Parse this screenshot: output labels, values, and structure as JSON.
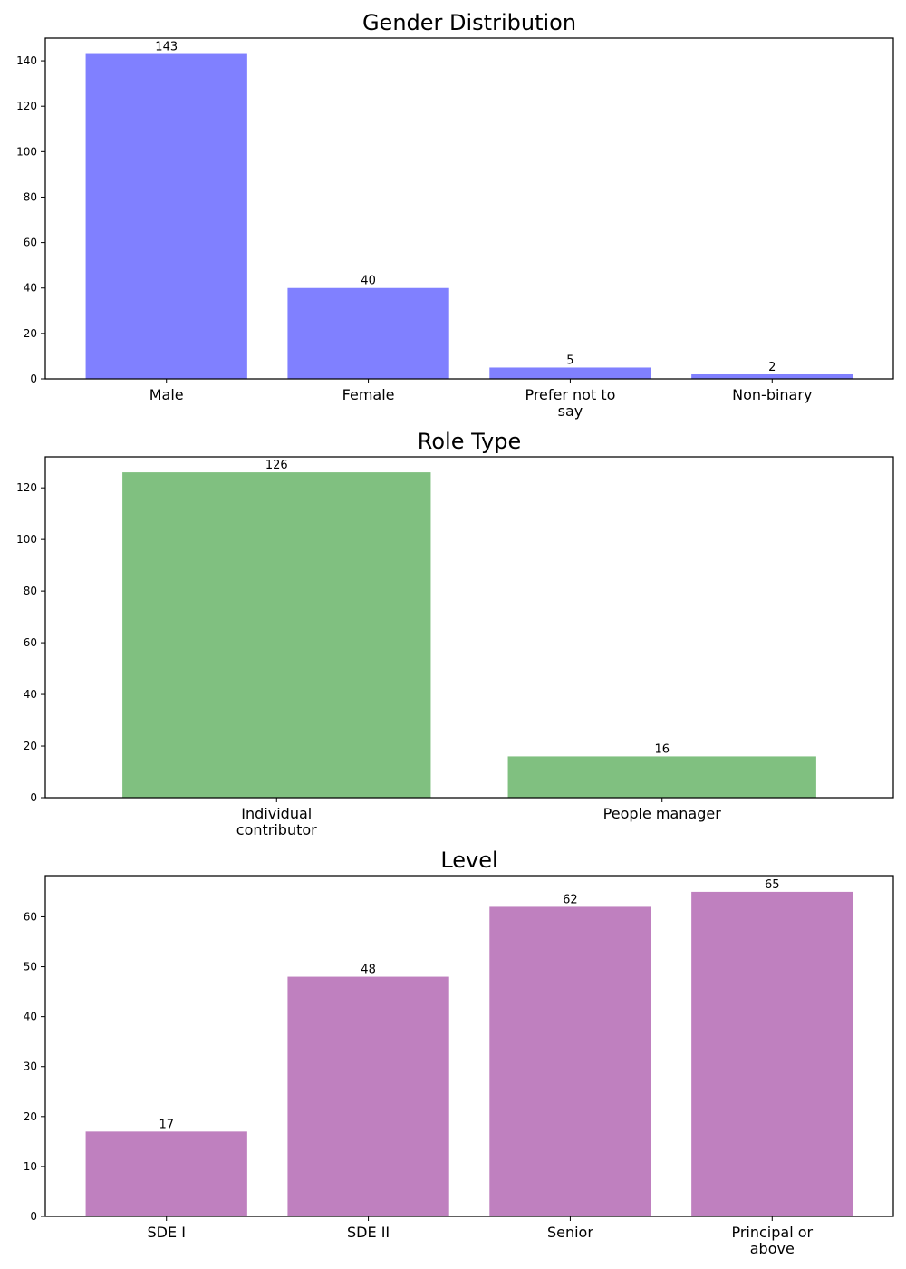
{
  "chart_data": [
    {
      "type": "bar",
      "title": "Gender Distribution",
      "categories": [
        "Male",
        "Female",
        "Prefer not to say",
        "Non-binary"
      ],
      "category_lines": [
        [
          "Male"
        ],
        [
          "Female"
        ],
        [
          "Prefer not to",
          "say"
        ],
        [
          "Non-binary"
        ]
      ],
      "values": [
        143,
        40,
        5,
        2
      ],
      "data_labels": [
        "143",
        "40",
        "5",
        "2"
      ],
      "color": "#8080ff",
      "ylim": [
        0,
        150
      ],
      "yticks": [
        0,
        20,
        40,
        60,
        80,
        100,
        120,
        140
      ],
      "xlabel": "",
      "ylabel": "",
      "grid": false
    },
    {
      "type": "bar",
      "title": "Role Type",
      "categories": [
        "Individual contributor",
        "People manager"
      ],
      "category_lines": [
        [
          "Individual",
          "contributor"
        ],
        [
          "People manager"
        ]
      ],
      "values": [
        126,
        16
      ],
      "data_labels": [
        "126",
        "16"
      ],
      "color": "#80c080",
      "ylim": [
        0,
        132
      ],
      "yticks": [
        0,
        20,
        40,
        60,
        80,
        100,
        120
      ],
      "xlabel": "",
      "ylabel": "",
      "grid": false
    },
    {
      "type": "bar",
      "title": "Level",
      "categories": [
        "SDE I",
        "SDE II",
        "Senior",
        "Principal or above"
      ],
      "category_lines": [
        [
          "SDE I"
        ],
        [
          "SDE II"
        ],
        [
          "Senior"
        ],
        [
          "Principal or",
          "above"
        ]
      ],
      "values": [
        17,
        48,
        62,
        65
      ],
      "data_labels": [
        "17",
        "48",
        "62",
        "65"
      ],
      "color": "#bf80bf",
      "ylim": [
        0,
        68.25
      ],
      "yticks": [
        0,
        10,
        20,
        30,
        40,
        50,
        60
      ],
      "xlabel": "",
      "ylabel": "",
      "grid": false
    }
  ]
}
